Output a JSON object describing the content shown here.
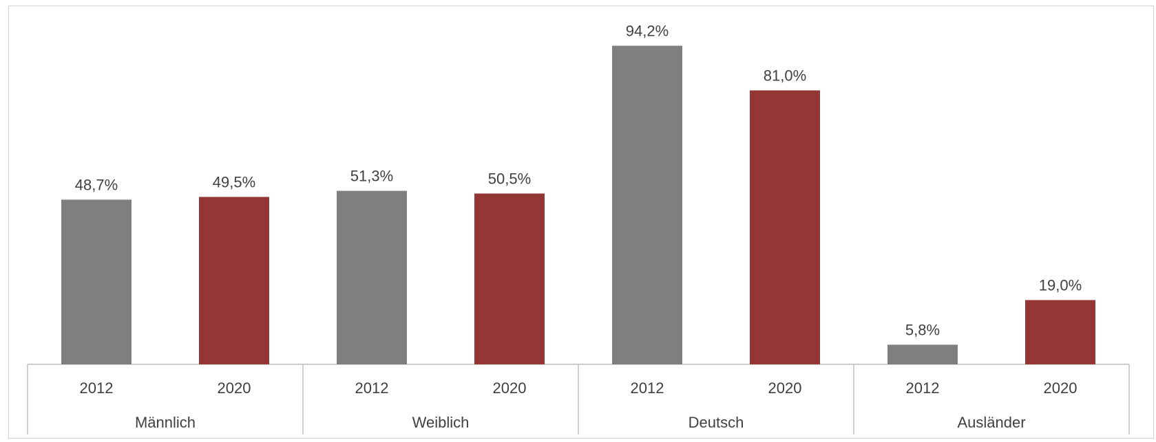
{
  "chart_data": {
    "type": "bar",
    "title": "",
    "xlabel": "",
    "ylabel": "",
    "ylim": [
      0,
      100
    ],
    "grid": false,
    "legend": "none",
    "colors": {
      "2012": "#7f7f7f",
      "2020": "#943634"
    },
    "groups": [
      {
        "label": "Männlich",
        "bars": [
          {
            "year": "2012",
            "value": 48.7,
            "label": "48,7%"
          },
          {
            "year": "2020",
            "value": 49.5,
            "label": "49,5%"
          }
        ]
      },
      {
        "label": "Weiblich",
        "bars": [
          {
            "year": "2012",
            "value": 51.3,
            "label": "51,3%"
          },
          {
            "year": "2020",
            "value": 50.5,
            "label": "50,5%"
          }
        ]
      },
      {
        "label": "Deutsch",
        "bars": [
          {
            "year": "2012",
            "value": 94.2,
            "label": "94,2%"
          },
          {
            "year": "2020",
            "value": 81.0,
            "label": "81,0%"
          }
        ]
      },
      {
        "label": "Ausländer",
        "bars": [
          {
            "year": "2012",
            "value": 5.8,
            "label": "5,8%"
          },
          {
            "year": "2020",
            "value": 19.0,
            "label": "19,0%"
          }
        ]
      }
    ]
  }
}
